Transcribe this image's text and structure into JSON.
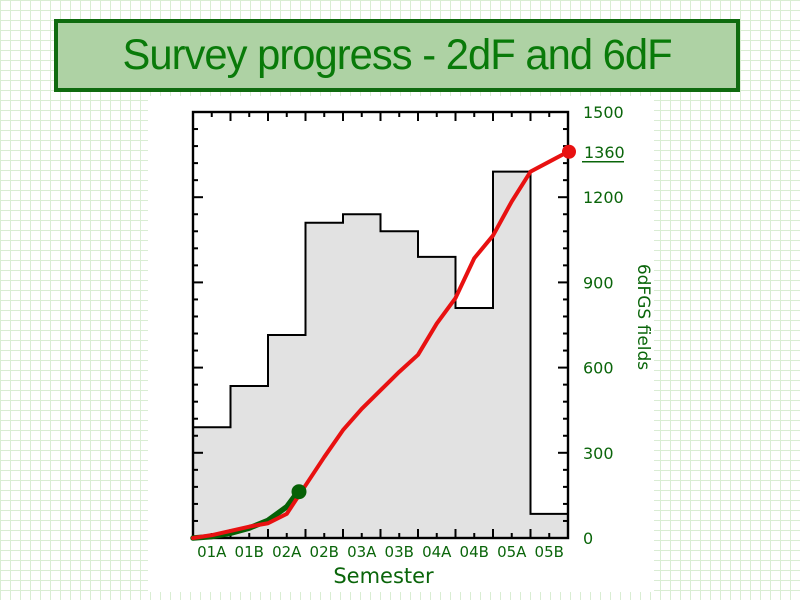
{
  "slide": {
    "title": "Survey progress - 2dF and 6dF"
  },
  "colors": {
    "page_grid_line": "#d9edd3",
    "title_box_fill": "#aed2a4",
    "title_box_border": "#0f6b0f",
    "title_text": "#097a09",
    "chart_text_green": "#0a650a",
    "histogram_fill": "#e2e2e2",
    "histogram_outline": "#000000",
    "red_line": "#e81111",
    "green_line": "#066106",
    "figure_background": "#ffffff"
  },
  "chart_data": {
    "type": "line",
    "title": "",
    "xlabel": "Semester",
    "ylabel_right": "6dFGS fields",
    "x_categories": [
      "01A",
      "01B",
      "02A",
      "02B",
      "03A",
      "03B",
      "04A",
      "04B",
      "05A",
      "05B"
    ],
    "ylim": [
      0,
      1500
    ],
    "y_major_ticks": [
      0,
      300,
      600,
      900,
      1200,
      1500
    ],
    "y_minor_step": 60,
    "x_minor_per_interval": 2,
    "grid": false,
    "legend": "none",
    "histogram": {
      "name": "fields-per-semester-step-histogram",
      "values": [
        390,
        535,
        715,
        1110,
        1140,
        1080,
        990,
        810,
        1290,
        85
      ]
    },
    "series": [
      {
        "name": "green-cumulative-line",
        "color": "#066106",
        "width": 5.5,
        "dot_radius": 7.5,
        "x": [
          0,
          0.5,
          1,
          1.5,
          2,
          2.5,
          2.8
        ],
        "values": [
          0,
          5,
          17,
          35,
          62,
          110,
          163
        ]
      },
      {
        "name": "red-cumulative-line",
        "color": "#e81111",
        "width": 4,
        "dot_radius": 7,
        "x": [
          0,
          0.5,
          1,
          1.5,
          2,
          2.5,
          3,
          3.5,
          4,
          4.5,
          5,
          5.5,
          6,
          6.5,
          7,
          7.5,
          8,
          8.5,
          9,
          9.5,
          10
        ],
        "values": [
          0,
          10,
          25,
          40,
          52,
          85,
          185,
          285,
          380,
          455,
          520,
          585,
          645,
          755,
          845,
          985,
          1065,
          1185,
          1290,
          1325,
          1360
        ]
      }
    ],
    "annotation": {
      "label": "1360",
      "value": 1360,
      "underlined": true
    }
  }
}
